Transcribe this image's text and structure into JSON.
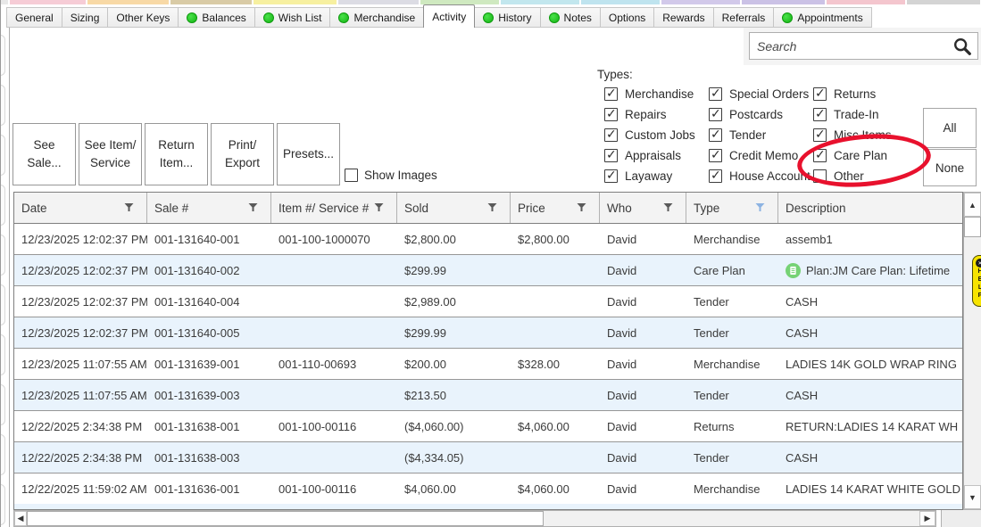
{
  "window": {
    "top_strip": [
      {
        "color": "#e8e8e8",
        "width": 10
      },
      {
        "color": "#f6ccd6",
        "width": 87
      },
      {
        "color": "#f8d9a6",
        "width": 93
      },
      {
        "color": "#d9cba6",
        "width": 93
      },
      {
        "color": "#f7f0a0",
        "width": 95
      },
      {
        "color": "#dcdce4",
        "width": 92
      },
      {
        "color": "#cfe9c0",
        "width": 90
      },
      {
        "color": "#c2e7ee",
        "width": 90
      },
      {
        "color": "#bfe4ef",
        "width": 90
      },
      {
        "color": "#d2c9ea",
        "width": 90
      },
      {
        "color": "#cbc2e6",
        "width": 95
      },
      {
        "color": "#f4c6ce",
        "width": 90
      },
      {
        "color": "#d4d4d4",
        "width": 84
      }
    ]
  },
  "tabs": [
    {
      "label": "General",
      "dot": false,
      "active": false
    },
    {
      "label": "Sizing",
      "dot": false,
      "active": false
    },
    {
      "label": "Other Keys",
      "dot": false,
      "active": false
    },
    {
      "label": "Balances",
      "dot": true,
      "active": false
    },
    {
      "label": "Wish List",
      "dot": true,
      "active": false
    },
    {
      "label": "Merchandise",
      "dot": true,
      "active": false
    },
    {
      "label": "Activity",
      "dot": false,
      "active": true
    },
    {
      "label": "History",
      "dot": true,
      "active": false
    },
    {
      "label": "Notes",
      "dot": true,
      "active": false
    },
    {
      "label": "Options",
      "dot": false,
      "active": false
    },
    {
      "label": "Rewards",
      "dot": false,
      "active": false
    },
    {
      "label": "Referrals",
      "dot": false,
      "active": false
    },
    {
      "label": "Appointments",
      "dot": true,
      "active": false
    }
  ],
  "search": {
    "placeholder": "Search"
  },
  "types": {
    "label": "Types:",
    "all_label": "All",
    "none_label": "None",
    "columns": [
      [
        {
          "label": "Merchandise",
          "checked": true
        },
        {
          "label": "Repairs",
          "checked": true
        },
        {
          "label": "Custom Jobs",
          "checked": true
        },
        {
          "label": "Appraisals",
          "checked": true
        },
        {
          "label": "Layaway",
          "checked": true
        }
      ],
      [
        {
          "label": "Special Orders",
          "checked": true
        },
        {
          "label": "Postcards",
          "checked": true
        },
        {
          "label": "Tender",
          "checked": true
        },
        {
          "label": "Credit Memo",
          "checked": true
        },
        {
          "label": "House Account",
          "checked": true
        }
      ],
      [
        {
          "label": "Returns",
          "checked": true
        },
        {
          "label": "Trade-In",
          "checked": true
        },
        {
          "label": "Misc Items",
          "checked": true
        },
        {
          "label": "Care Plan",
          "checked": true
        },
        {
          "label": "Other",
          "checked": false
        }
      ]
    ]
  },
  "annotation": {
    "shape": "ellipse",
    "color": "#e8112d",
    "highlights": "Care Plan checkbox"
  },
  "action_buttons": [
    {
      "label": "See Sale..."
    },
    {
      "label": "See Item/ Service"
    },
    {
      "label": "Return Item..."
    },
    {
      "label": "Print/ Export"
    },
    {
      "label": "Presets..."
    }
  ],
  "show_images": {
    "label": "Show Images",
    "checked": false
  },
  "table": {
    "columns": [
      {
        "label": "Date",
        "filter": "default"
      },
      {
        "label": "Sale #",
        "filter": "default"
      },
      {
        "label": "Item #/ Service #",
        "filter": "default"
      },
      {
        "label": "Sold",
        "filter": "default"
      },
      {
        "label": "Price",
        "filter": "default"
      },
      {
        "label": "Who",
        "filter": "default"
      },
      {
        "label": "Type",
        "filter": "active"
      },
      {
        "label": "Description",
        "filter": "none"
      }
    ],
    "filter_colors": {
      "default": "#5a5a5a",
      "active": "#8db3e2"
    },
    "rows": [
      {
        "date": "12/23/2025 12:02:37 PM",
        "sale": "001-131640-001",
        "item": "001-100-1000070",
        "sold": "$2,800.00",
        "price": "$2,800.00",
        "who": "David",
        "type": "Merchandise",
        "description": "assemb1",
        "icon": false
      },
      {
        "date": "12/23/2025 12:02:37 PM",
        "sale": "001-131640-002",
        "item": "",
        "sold": "$299.99",
        "price": "",
        "who": "David",
        "type": "Care Plan",
        "description": "Plan:JM Care Plan: Lifetime",
        "icon": true
      },
      {
        "date": "12/23/2025 12:02:37 PM",
        "sale": "001-131640-004",
        "item": "",
        "sold": "$2,989.00",
        "price": "",
        "who": "David",
        "type": "Tender",
        "description": "CASH",
        "icon": false
      },
      {
        "date": "12/23/2025 12:02:37 PM",
        "sale": "001-131640-005",
        "item": "",
        "sold": "$299.99",
        "price": "",
        "who": "David",
        "type": "Tender",
        "description": "CASH",
        "icon": false
      },
      {
        "date": "12/23/2025 11:07:55 AM",
        "sale": "001-131639-001",
        "item": "001-110-00693",
        "sold": "$200.00",
        "price": "$328.00",
        "who": "David",
        "type": "Merchandise",
        "description": "LADIES 14K GOLD WRAP RING",
        "icon": false
      },
      {
        "date": "12/23/2025 11:07:55 AM",
        "sale": "001-131639-003",
        "item": "",
        "sold": "$213.50",
        "price": "",
        "who": "David",
        "type": "Tender",
        "description": "CASH",
        "icon": false
      },
      {
        "date": "12/22/2025 2:34:38 PM",
        "sale": "001-131638-001",
        "item": "001-100-00116",
        "sold": "($4,060.00)",
        "price": "$4,060.00",
        "who": "David",
        "type": "Returns",
        "description": "RETURN:LADIES 14 KARAT WH",
        "icon": false
      },
      {
        "date": "12/22/2025 2:34:38 PM",
        "sale": "001-131638-003",
        "item": "",
        "sold": "($4,334.05)",
        "price": "",
        "who": "David",
        "type": "Tender",
        "description": "CASH",
        "icon": false
      },
      {
        "date": "12/22/2025 11:59:02 AM",
        "sale": "001-131636-001",
        "item": "001-100-00116",
        "sold": "$4,060.00",
        "price": "$4,060.00",
        "who": "David",
        "type": "Merchandise",
        "description": "LADIES 14 KARAT WHITE GOLD",
        "icon": false
      }
    ]
  },
  "help_tab": {
    "label": "HELP"
  },
  "icons": {
    "scroll_up": "▲",
    "scroll_down": "▼",
    "scroll_left": "◀",
    "scroll_right": "▶"
  }
}
